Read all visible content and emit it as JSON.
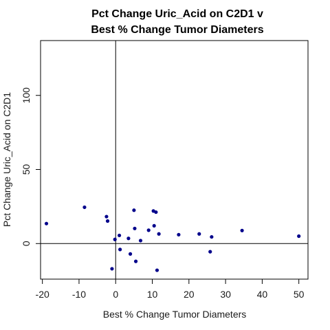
{
  "chart_data": {
    "type": "scatter",
    "title_line1": "Pct Change Uric_Acid on C2D1 v",
    "title_line2": "Best % Change Tumor Diameters",
    "xlabel": "Best % Change Tumor Diameters",
    "ylabel": "Pct Change Uric_Acid on C2D1",
    "xlim": [
      -20.5,
      52.5
    ],
    "ylim": [
      -24,
      137
    ],
    "x_ticks": [
      -20,
      -10,
      0,
      10,
      20,
      30,
      40,
      50
    ],
    "y_ticks": [
      0,
      50,
      100
    ],
    "reference_lines": {
      "x": 0,
      "y": 0
    },
    "point_color": "#00008b",
    "points": [
      {
        "x": -18.9,
        "y": 13.5
      },
      {
        "x": -8.5,
        "y": 24.5
      },
      {
        "x": -2.5,
        "y": 18.2
      },
      {
        "x": -2.2,
        "y": 15.2
      },
      {
        "x": -1.0,
        "y": -17.0
      },
      {
        "x": -0.2,
        "y": 2.8
      },
      {
        "x": 1.0,
        "y": 5.5
      },
      {
        "x": 1.2,
        "y": -4.0
      },
      {
        "x": 3.5,
        "y": 3.5
      },
      {
        "x": 4.0,
        "y": -7.0
      },
      {
        "x": 5.0,
        "y": 22.5
      },
      {
        "x": 5.2,
        "y": 10.2
      },
      {
        "x": 5.5,
        "y": -12.0
      },
      {
        "x": 6.8,
        "y": 2.0
      },
      {
        "x": 9.0,
        "y": 9.0
      },
      {
        "x": 10.3,
        "y": 22.0
      },
      {
        "x": 10.5,
        "y": 12.0
      },
      {
        "x": 11.0,
        "y": 21.2
      },
      {
        "x": 11.3,
        "y": -18.0
      },
      {
        "x": 11.8,
        "y": 6.5
      },
      {
        "x": 17.2,
        "y": 6.0
      },
      {
        "x": 22.8,
        "y": 6.5
      },
      {
        "x": 25.8,
        "y": -5.5
      },
      {
        "x": 26.2,
        "y": 4.5
      },
      {
        "x": 34.5,
        "y": 8.8
      },
      {
        "x": 50.0,
        "y": 5.0
      }
    ]
  }
}
